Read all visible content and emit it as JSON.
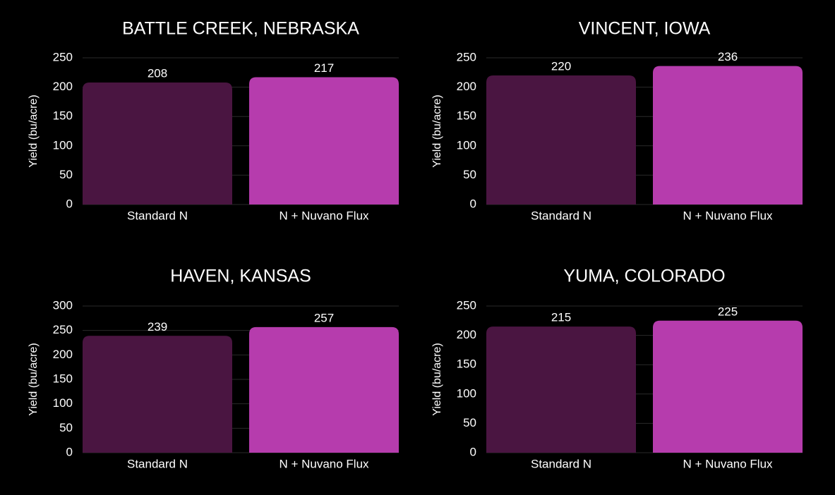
{
  "chart_data": [
    {
      "type": "bar",
      "title": "BATTLE CREEK, NEBRASKA",
      "y_label": "Yield (bu/acre)",
      "categories": [
        "Standard N",
        "N + Nuvano Flux"
      ],
      "values": [
        208,
        217
      ],
      "colors": [
        "#4a1541",
        "#b63cad"
      ],
      "ylim": [
        0,
        250
      ],
      "yticks": [
        0,
        50,
        100,
        150,
        200,
        250
      ],
      "grid": true
    },
    {
      "type": "bar",
      "title": "VINCENT, IOWA",
      "y_label": "Yield (bu/acre)",
      "categories": [
        "Standard N",
        "N + Nuvano Flux"
      ],
      "values": [
        220,
        236
      ],
      "colors": [
        "#4a1541",
        "#b63cad"
      ],
      "ylim": [
        0,
        250
      ],
      "yticks": [
        0,
        50,
        100,
        150,
        200,
        250
      ],
      "grid": true
    },
    {
      "type": "bar",
      "title": "HAVEN, KANSAS",
      "y_label": "Yield (bu/acre)",
      "categories": [
        "Standard N",
        "N + Nuvano Flux"
      ],
      "values": [
        239,
        257
      ],
      "colors": [
        "#4a1541",
        "#b63cad"
      ],
      "ylim": [
        0,
        300
      ],
      "yticks": [
        0,
        50,
        100,
        150,
        200,
        250,
        300
      ],
      "grid": true
    },
    {
      "type": "bar",
      "title": "YUMA, COLORADO",
      "y_label": "Yield (bu/acre)",
      "categories": [
        "Standard N",
        "N + Nuvano Flux"
      ],
      "values": [
        215,
        225
      ],
      "colors": [
        "#4a1541",
        "#b63cad"
      ],
      "ylim": [
        0,
        250
      ],
      "yticks": [
        0,
        50,
        100,
        150,
        200,
        250
      ],
      "grid": true
    }
  ]
}
